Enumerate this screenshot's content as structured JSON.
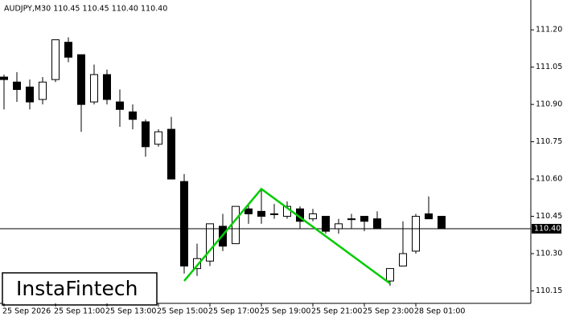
{
  "chart_data": {
    "type": "candlestick",
    "title": "AUDJPY,M30  110.45 110.45 110.40 110.40",
    "watermark": "InstaFintech",
    "categories": [
      "25 Sep 2026",
      null,
      null,
      null,
      "25 Sep 11:00",
      null,
      null,
      null,
      "25 Sep 13:00",
      null,
      null,
      null,
      "25 Sep 15:00",
      null,
      null,
      null,
      "25 Sep 17:00",
      null,
      null,
      null,
      "25 Sep 19:00",
      null,
      null,
      null,
      "25 Sep 21:00",
      null,
      null,
      null,
      "25 Sep 23:00",
      null,
      null,
      null,
      "28 Sep 01:00",
      null,
      null
    ],
    "open": [
      111.01,
      110.99,
      110.97,
      110.92,
      111.0,
      111.15,
      111.1,
      110.91,
      111.02,
      110.91,
      110.87,
      110.83,
      110.74,
      110.8,
      110.59,
      110.24,
      110.27,
      110.41,
      110.34,
      110.48,
      110.47,
      110.46,
      110.45,
      110.48,
      110.44,
      110.45,
      110.4,
      110.44,
      110.45,
      110.44,
      110.19,
      110.25,
      110.31,
      110.46,
      110.45
    ],
    "high": [
      111.02,
      111.03,
      111.0,
      111.01,
      111.16,
      111.17,
      111.1,
      111.06,
      111.04,
      110.96,
      110.9,
      110.84,
      110.8,
      110.85,
      110.62,
      110.34,
      110.42,
      110.46,
      110.49,
      110.5,
      110.56,
      110.5,
      110.51,
      110.49,
      110.48,
      110.45,
      110.44,
      110.46,
      110.45,
      110.47,
      110.24,
      110.43,
      110.46,
      110.53,
      110.45
    ],
    "low": [
      110.88,
      110.91,
      110.88,
      110.9,
      110.99,
      111.07,
      110.79,
      110.9,
      110.9,
      110.81,
      110.8,
      110.69,
      110.73,
      110.6,
      110.22,
      110.21,
      110.25,
      110.31,
      110.34,
      110.42,
      110.42,
      110.44,
      110.44,
      110.4,
      110.43,
      110.38,
      110.38,
      110.4,
      110.39,
      110.4,
      110.17,
      110.25,
      110.3,
      110.44,
      110.4
    ],
    "close": [
      111.0,
      110.96,
      110.91,
      110.99,
      111.16,
      111.09,
      110.9,
      111.02,
      110.92,
      110.88,
      110.84,
      110.73,
      110.79,
      110.6,
      110.25,
      110.28,
      110.42,
      110.33,
      110.49,
      110.46,
      110.45,
      110.46,
      110.49,
      110.43,
      110.46,
      110.39,
      110.42,
      110.44,
      110.43,
      110.4,
      110.24,
      110.3,
      110.45,
      110.44,
      110.4
    ],
    "ylim": [
      110.1,
      111.32
    ],
    "yticks": [
      {
        "value": 111.2,
        "label": "111.20"
      },
      {
        "value": 111.05,
        "label": "111.05"
      },
      {
        "value": 110.9,
        "label": "110.90"
      },
      {
        "value": 110.75,
        "label": "110.75"
      },
      {
        "value": 110.6,
        "label": "110.60"
      },
      {
        "value": 110.45,
        "label": "110.45"
      },
      {
        "value": 110.3,
        "label": "110.30"
      },
      {
        "value": 110.15,
        "label": "110.15"
      }
    ],
    "price_line": {
      "value": 110.4,
      "label": "110.40"
    },
    "pattern": {
      "color": "#00cc00",
      "points": [
        {
          "index": 14,
          "value": 110.19
        },
        {
          "index": 20,
          "value": 110.56
        },
        {
          "index": 30,
          "value": 110.18
        }
      ]
    }
  }
}
